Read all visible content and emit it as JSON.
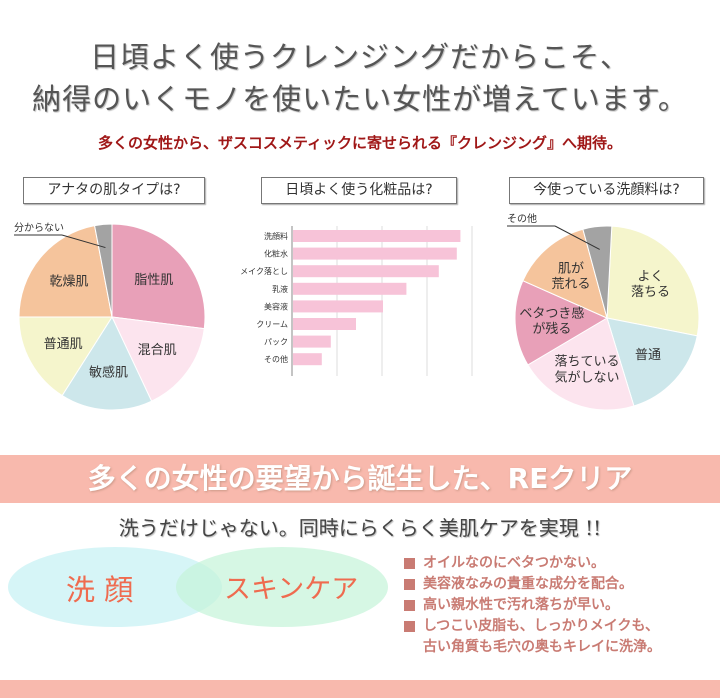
{
  "header": {
    "line1": "日頃よく使うクレンジングだからこそ、",
    "line2": "納得のいくモノを使いたい女性が増えています。",
    "subtitle": "多くの女性から、ザスコスメティックに寄せられる『クレンジング』へ期待。"
  },
  "chart_data": [
    {
      "type": "pie",
      "title": "アナタの肌タイプは?",
      "unit": "percent (estimated)",
      "slices": [
        {
          "label": "脂性肌",
          "value": 27,
          "color": "#e8a0b8"
        },
        {
          "label": "混合肌",
          "value": 16,
          "color": "#fce4ee"
        },
        {
          "label": "敏感肌",
          "value": 16,
          "color": "#cde7eb"
        },
        {
          "label": "普通肌",
          "value": 16,
          "color": "#f5f5cc"
        },
        {
          "label": "乾燥肌",
          "value": 22,
          "color": "#f5c49c"
        },
        {
          "label": "分からない",
          "value": 3,
          "color": "#a3a3a3"
        }
      ]
    },
    {
      "type": "bar",
      "orientation": "horizontal",
      "title": "日頃よく使う化粧品は?",
      "unit": "relative (no axis values shown)",
      "xlim": [
        0,
        100
      ],
      "grid": true,
      "categories": [
        "洗顔料",
        "化粧水",
        "メイク落とし",
        "乳液",
        "美容液",
        "クリーム",
        "パック",
        "その他"
      ],
      "values": [
        93,
        91,
        81,
        63,
        50,
        35,
        21,
        16
      ],
      "color": "#f7c3d8"
    },
    {
      "type": "pie",
      "title": "今使っている洗顔料は?",
      "unit": "percent (estimated)",
      "slices": [
        {
          "label": "よく\n落ちる",
          "value": 27,
          "color": "#f5f5cc"
        },
        {
          "label": "普通",
          "value": 17,
          "color": "#cde7eb"
        },
        {
          "label": "落ちている\n気がしない",
          "value": 21,
          "color": "#fce4ee"
        },
        {
          "label": "ベタつき感\nが残る",
          "value": 15,
          "color": "#e8a0b8"
        },
        {
          "label": "肌が\n荒れる",
          "value": 14,
          "color": "#f5c49c"
        },
        {
          "label": "その他",
          "value": 5,
          "color": "#a3a3a3"
        }
      ]
    }
  ],
  "banner": "多くの女性の要望から誕生した、REクリア",
  "tagline": "洗うだけじゃない。同時にらくらく美肌ケアを実現 !!",
  "venn": {
    "left": "洗 顔",
    "right": "スキンケア"
  },
  "features": [
    "オイルなのにベタつかない。",
    "美容液なみの貴重な成分を配合。",
    "高い親水性で汚れ落ちが早い。",
    "しつこい皮脂も、しっかりメイクも、",
    "古い角質も毛穴の奥もキレイに洗浄。"
  ]
}
